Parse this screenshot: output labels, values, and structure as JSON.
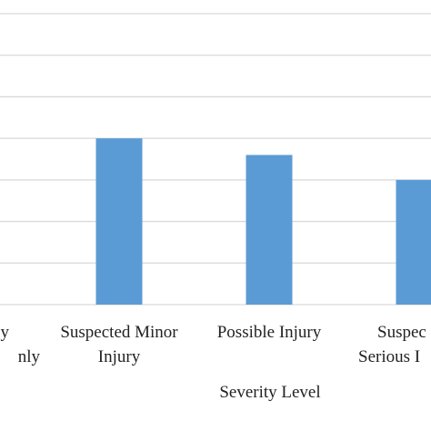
{
  "chart_data": {
    "type": "bar",
    "x_label": "Severity Level",
    "categories": [
      "y\nnly",
      "Suspected Minor\nInjury",
      "Possible Injury",
      "Suspec\nSerious I"
    ],
    "values": [
      null,
      4,
      3.6,
      3
    ],
    "color": "#5b9bd5",
    "ylim": [
      0,
      7
    ],
    "yticks": [
      0,
      1,
      2,
      3,
      4,
      5,
      6,
      7
    ],
    "grid": true
  }
}
